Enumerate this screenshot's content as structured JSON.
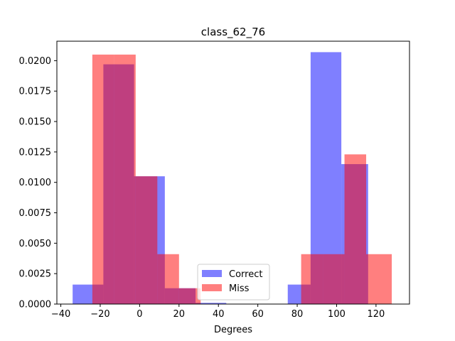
{
  "chart_data": {
    "type": "bar",
    "title": "class_62_76",
    "xlabel": "Degrees",
    "ylabel": "",
    "xlim": [
      -42,
      137
    ],
    "ylim": [
      0,
      0.0216
    ],
    "xticks": [
      -40,
      -20,
      0,
      20,
      40,
      60,
      80,
      100,
      120
    ],
    "yticks": [
      0.0,
      0.0025,
      0.005,
      0.0075,
      0.01,
      0.0125,
      0.015,
      0.0175,
      0.02
    ],
    "ytick_labels": [
      "0.0000",
      "0.0025",
      "0.0050",
      "0.0075",
      "0.0100",
      "0.0125",
      "0.0150",
      "0.0175",
      "0.0200"
    ],
    "grid": false,
    "legend_position": "lower-center",
    "series": [
      {
        "name": "Correct",
        "color": "#0000ff",
        "alpha": 0.5,
        "bins": [
          {
            "x0": -34.0,
            "x1": -18.4,
            "value": 0.0016
          },
          {
            "x0": -18.4,
            "x1": -2.8,
            "value": 0.0197
          },
          {
            "x0": -2.8,
            "x1": 12.8,
            "value": 0.0105
          },
          {
            "x0": 12.8,
            "x1": 28.4,
            "value": 0.0013
          },
          {
            "x0": 28.4,
            "x1": 44.0,
            "value": 0.0001
          },
          {
            "x0": 44.0,
            "x1": 59.6,
            "value": 0.0
          },
          {
            "x0": 59.6,
            "x1": 75.2,
            "value": 0.0
          },
          {
            "x0": 75.2,
            "x1": 86.8,
            "value": 0.0016
          },
          {
            "x0": 86.8,
            "x1": 102.4,
            "value": 0.0207
          },
          {
            "x0": 102.4,
            "x1": 116.0,
            "value": 0.0115
          }
        ]
      },
      {
        "name": "Miss",
        "color": "#ff0000",
        "alpha": 0.5,
        "bins": [
          {
            "x0": -24.0,
            "x1": -13.0,
            "value": 0.0205
          },
          {
            "x0": -13.0,
            "x1": -2.0,
            "value": 0.0205
          },
          {
            "x0": -2.0,
            "x1": 9.0,
            "value": 0.0105
          },
          {
            "x0": 9.0,
            "x1": 20.0,
            "value": 0.0041
          },
          {
            "x0": 20.0,
            "x1": 31.0,
            "value": 0.0013
          },
          {
            "x0": 82.0,
            "x1": 93.0,
            "value": 0.0041
          },
          {
            "x0": 93.0,
            "x1": 104.0,
            "value": 0.0041
          },
          {
            "x0": 104.0,
            "x1": 115.0,
            "value": 0.0123
          },
          {
            "x0": 115.0,
            "x1": 128.0,
            "value": 0.0041
          }
        ]
      }
    ]
  }
}
